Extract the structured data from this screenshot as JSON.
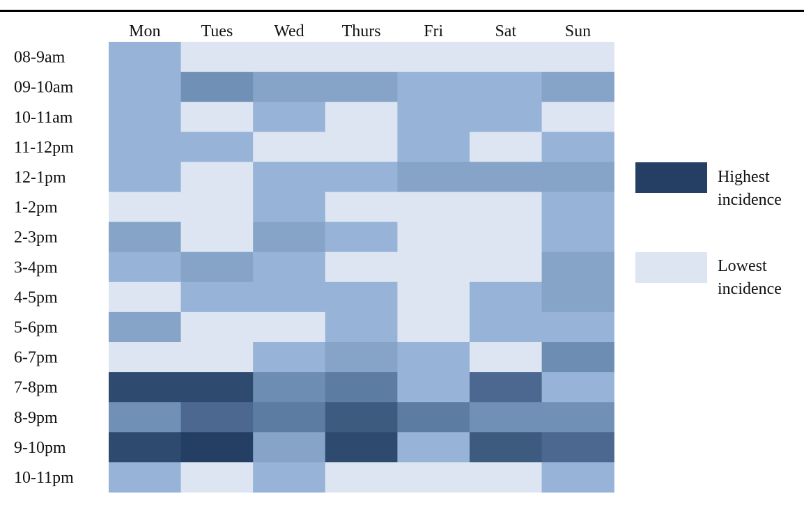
{
  "chart_data": {
    "type": "heatmap",
    "columns": [
      "Mon",
      "Tues",
      "Wed",
      "Thurs",
      "Fri",
      "Sat",
      "Sun"
    ],
    "rows": [
      "08-9am",
      "09-10am",
      "10-11am",
      "11-12pm",
      "12-1pm",
      "1-2pm",
      "2-3pm",
      "3-4pm",
      "4-5pm",
      "5-6pm",
      "6-7pm",
      "7-8pm",
      "8-9pm",
      "9-10pm",
      "10-11pm"
    ],
    "levels": [
      [
        1,
        0,
        0,
        0,
        0,
        0,
        0
      ],
      [
        1,
        3,
        2,
        2,
        1,
        1,
        2
      ],
      [
        1,
        0,
        1,
        0,
        1,
        1,
        0
      ],
      [
        1,
        1,
        0,
        0,
        1,
        0,
        1
      ],
      [
        1,
        0,
        1,
        1,
        2,
        2,
        2
      ],
      [
        0,
        0,
        1,
        0,
        0,
        0,
        1
      ],
      [
        2,
        0,
        2,
        1,
        0,
        0,
        1
      ],
      [
        1,
        2,
        1,
        0,
        0,
        0,
        2
      ],
      [
        0,
        1,
        1,
        1,
        0,
        1,
        2
      ],
      [
        2,
        0,
        0,
        1,
        0,
        1,
        1
      ],
      [
        0,
        0,
        1,
        2,
        1,
        0,
        4
      ],
      [
        8,
        8,
        4,
        5,
        1,
        6,
        1
      ],
      [
        3,
        6,
        5,
        7,
        5,
        3,
        3
      ],
      [
        8,
        9,
        2,
        8,
        1,
        7,
        6
      ],
      [
        1,
        0,
        1,
        0,
        0,
        0,
        1
      ]
    ],
    "palette": [
      "#dce5f1",
      "#97b3d8",
      "#86a3c8",
      "#7190b6",
      "#6e8db3",
      "#5d7ca2",
      "#4c6890",
      "#3d5a7f",
      "#2e4a6e",
      "#243f63"
    ],
    "legend": [
      {
        "label_line1": "Highest",
        "label_line2": "incidence",
        "color": "#243f63"
      },
      {
        "label_line1": "Lowest",
        "label_line2": "incidence",
        "color": "#dce5f1"
      }
    ]
  }
}
